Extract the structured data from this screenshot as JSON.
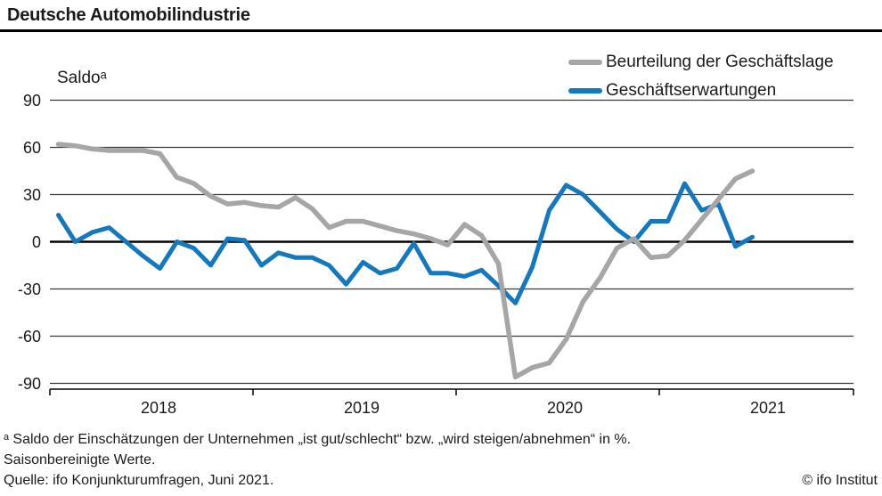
{
  "title": "Deutsche Automobilindustrie",
  "y_axis_label": "Saldoᵃ",
  "legend": [
    {
      "label": "Beurteilung der Geschäftslage",
      "color": "#a6a6a6"
    },
    {
      "label": "Geschäftserwartungen",
      "color": "#1478be"
    }
  ],
  "footnote_line1": "ᵃ Saldo der Einschätzungen der Unternehmen „ist gut/schlecht“ bzw. „wird steigen/abnehmen“ in %.",
  "footnote_line2": "Saisonbereinigte Werte.",
  "source": "Quelle: ifo Konjunkturumfragen, Juni 2021.",
  "copyright": "© ifo Institut",
  "chart_data": {
    "type": "line",
    "title": "Deutsche Automobilindustrie",
    "ylabel": "Saldoᵃ",
    "ylim": [
      -90,
      90
    ],
    "y_ticks": [
      90,
      60,
      30,
      0,
      -30,
      -60,
      -90
    ],
    "x_tick_labels": [
      "2018",
      "2019",
      "2020",
      "2021"
    ],
    "grid": "horizontal",
    "legend_position": "top-right",
    "x": [
      "2018-01",
      "2018-02",
      "2018-03",
      "2018-04",
      "2018-05",
      "2018-06",
      "2018-07",
      "2018-08",
      "2018-09",
      "2018-10",
      "2018-11",
      "2018-12",
      "2019-01",
      "2019-02",
      "2019-03",
      "2019-04",
      "2019-05",
      "2019-06",
      "2019-07",
      "2019-08",
      "2019-09",
      "2019-10",
      "2019-11",
      "2019-12",
      "2020-01",
      "2020-02",
      "2020-03",
      "2020-04",
      "2020-05",
      "2020-06",
      "2020-07",
      "2020-08",
      "2020-09",
      "2020-10",
      "2020-11",
      "2020-12",
      "2021-01",
      "2021-02",
      "2021-03",
      "2021-04",
      "2021-05",
      "2021-06"
    ],
    "series": [
      {
        "name": "Beurteilung der Geschäftslage",
        "color": "#a6a6a6",
        "values": [
          62,
          61,
          59,
          58,
          58,
          58,
          56,
          41,
          37,
          29,
          24,
          25,
          23,
          22,
          28,
          21,
          9,
          13,
          13,
          10,
          7,
          5,
          2,
          -2,
          11,
          4,
          -14,
          -86,
          -80,
          -77,
          -62,
          -38,
          -23,
          -4,
          2,
          -10,
          -9,
          1,
          14,
          27,
          40,
          45
        ]
      },
      {
        "name": "Geschäftserwartungen",
        "color": "#1478be",
        "values": [
          17,
          0,
          6,
          9,
          0,
          -9,
          -17,
          0,
          -4,
          -15,
          2,
          1,
          -15,
          -7,
          -10,
          -10,
          -15,
          -27,
          -13,
          -20,
          -17,
          -1,
          -20,
          -20,
          -22,
          -18,
          -28,
          -39,
          -16,
          20,
          36,
          30,
          19,
          8,
          0,
          13,
          13,
          37,
          20,
          24,
          -3,
          3
        ]
      }
    ]
  }
}
